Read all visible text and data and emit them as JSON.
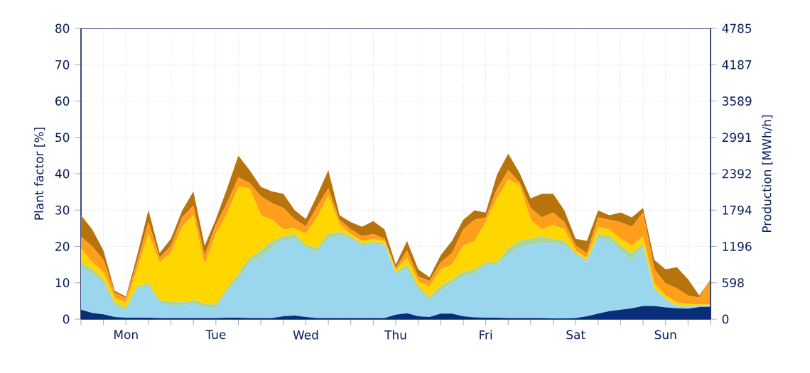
{
  "chart_data": {
    "type": "area",
    "stacked": true,
    "grid": true,
    "ylabel": "Plant factor [%]",
    "y2label": "Production [MWh/h]",
    "categories": [
      null,
      null,
      null,
      null,
      "Mon",
      null,
      null,
      null,
      null,
      null,
      null,
      null,
      "Tue",
      null,
      null,
      null,
      null,
      null,
      null,
      null,
      "Wed",
      null,
      null,
      null,
      null,
      null,
      null,
      null,
      "Thu",
      null,
      null,
      null,
      null,
      null,
      null,
      null,
      "Fri",
      null,
      null,
      null,
      null,
      null,
      null,
      null,
      "Sat",
      null,
      null,
      null,
      null,
      null,
      null,
      null,
      "Sun",
      null,
      null,
      null,
      null
    ],
    "ylim": [
      0,
      80
    ],
    "yticks": [
      0,
      10,
      20,
      30,
      40,
      50,
      60,
      70,
      80
    ],
    "y2lim": [
      0,
      4785
    ],
    "y2ticks": [
      0,
      598,
      1196,
      1794,
      2392,
      2991,
      3589,
      4187,
      4785
    ],
    "series": [
      {
        "color": "#0a2d7a",
        "values": [
          2.6,
          1.7,
          1.3,
          0.6,
          0.4,
          0.4,
          0.4,
          0.3,
          0.3,
          0.3,
          0.3,
          0.3,
          0.3,
          0.4,
          0.4,
          0.3,
          0.3,
          0.3,
          0.8,
          1.0,
          0.6,
          0.3,
          0.3,
          0.3,
          0.3,
          0.3,
          0.3,
          0.3,
          1.2,
          1.6,
          0.8,
          0.6,
          1.5,
          1.5,
          0.8,
          0.5,
          0.4,
          0.4,
          0.3,
          0.3,
          0.3,
          0.3,
          0.2,
          0.2,
          0.3,
          0.8,
          1.5,
          2.2,
          2.6,
          3.0,
          3.6,
          3.6,
          3.2,
          3.0,
          2.9,
          3.3,
          3.4
        ]
      },
      {
        "color": "#9ad7ee",
        "values": [
          11.7,
          10.7,
          8.5,
          2.9,
          1.8,
          8.1,
          8.7,
          4.0,
          3.6,
          3.6,
          4.0,
          2.9,
          2.7,
          7.1,
          10.6,
          15.2,
          16.6,
          19.2,
          20.9,
          21,
          18.9,
          18.2,
          21.7,
          22.7,
          21.8,
          19.9,
          20.5,
          20.1,
          11.3,
          12.1,
          7.0,
          4.4,
          6.3,
          8.3,
          10.9,
          11.9,
          14.6,
          14.6,
          17.3,
          19.2,
          20.1,
          20.5,
          20.6,
          20.2,
          17.3,
          14.8,
          20.6,
          19.3,
          16,
          13.3,
          15.9,
          4.2,
          2.0,
          0.5,
          0.5,
          0.2,
          0.2
        ]
      },
      {
        "color": "#a9d5a2",
        "values": [
          1.3,
          1.3,
          1.2,
          1.1,
          1.0,
          0.6,
          0.7,
          0.9,
          0.9,
          0.7,
          0.9,
          1.0,
          1.0,
          1.0,
          1.5,
          1.5,
          2.0,
          2.0,
          1.1,
          1.4,
          1.0,
          1.0,
          1.5,
          1.0,
          0.7,
          0.6,
          0.4,
          0.4,
          0.5,
          1.3,
          1.3,
          1.0,
          1.3,
          1.2,
          1.3,
          1.3,
          0.6,
          0.6,
          1.9,
          2.0,
          1.7,
          2.0,
          1.3,
          1.1,
          0.6,
          0.7,
          1.3,
          1.5,
          1.6,
          1.9,
          1.3,
          0.7,
          0.4,
          0.3,
          0.3,
          0.2,
          0.2
        ]
      },
      {
        "color": "#ffd600",
        "values": [
          3.9,
          1.9,
          2.0,
          1.3,
          1.3,
          4.6,
          13.6,
          10.4,
          13.4,
          20.8,
          23.4,
          10.8,
          19.5,
          20.5,
          24,
          19,
          9.7,
          5.8,
          1.9,
          1.6,
          3.0,
          8.5,
          10.5,
          2.0,
          0.6,
          0.7,
          0.9,
          0.7,
          0.5,
          1.9,
          1.3,
          3.0,
          4.6,
          4.0,
          7.2,
          7.8,
          11.1,
          17.6,
          18.9,
          15.5,
          5.2,
          1.9,
          3.9,
          3.2,
          0.7,
          0.6,
          2.0,
          1.7,
          1.9,
          2.0,
          2.0,
          1.3,
          0.9,
          0.8,
          0.5,
          0.3,
          0.2
        ]
      },
      {
        "color": "#ff9e1b",
        "values": [
          3.2,
          4.4,
          3.3,
          1.3,
          1.3,
          1.9,
          3.3,
          1.3,
          2.0,
          2.6,
          2.6,
          2.5,
          2.5,
          3,
          2.5,
          1.5,
          5.2,
          4.6,
          5.9,
          2.5,
          2.0,
          3,
          2,
          1.3,
          1.3,
          1.3,
          1.3,
          0.6,
          0.5,
          2.0,
          1.3,
          1.5,
          1.9,
          3.2,
          4.5,
          5.8,
          1.3,
          2.6,
          2.6,
          0.7,
          3.3,
          3.3,
          3.3,
          2.0,
          1.3,
          1.3,
          2.6,
          2.6,
          4.6,
          5.2,
          6.5,
          3.9,
          3.3,
          3.9,
          2.3,
          1.9,
          7.0
        ]
      },
      {
        "color": "#b8740a",
        "values": [
          5.9,
          4.7,
          2.6,
          0.6,
          0.4,
          2.0,
          3.3,
          1.3,
          1.9,
          1.9,
          3.9,
          2.7,
          1.5,
          4,
          6,
          3.5,
          2.6,
          3.2,
          3.9,
          2.5,
          2.0,
          3,
          5,
          1.3,
          2.0,
          2.6,
          3.6,
          2.6,
          1.0,
          2.6,
          2.0,
          1.0,
          2.0,
          3.3,
          2.6,
          2.6,
          1.3,
          3.9,
          4.5,
          2.6,
          2.6,
          6.5,
          5.2,
          3.2,
          1.9,
          3.3,
          1.9,
          1.3,
          2.6,
          2.6,
          1.3,
          2.6,
          3.9,
          5.8,
          4.5,
          0.6,
          0
        ]
      }
    ]
  }
}
